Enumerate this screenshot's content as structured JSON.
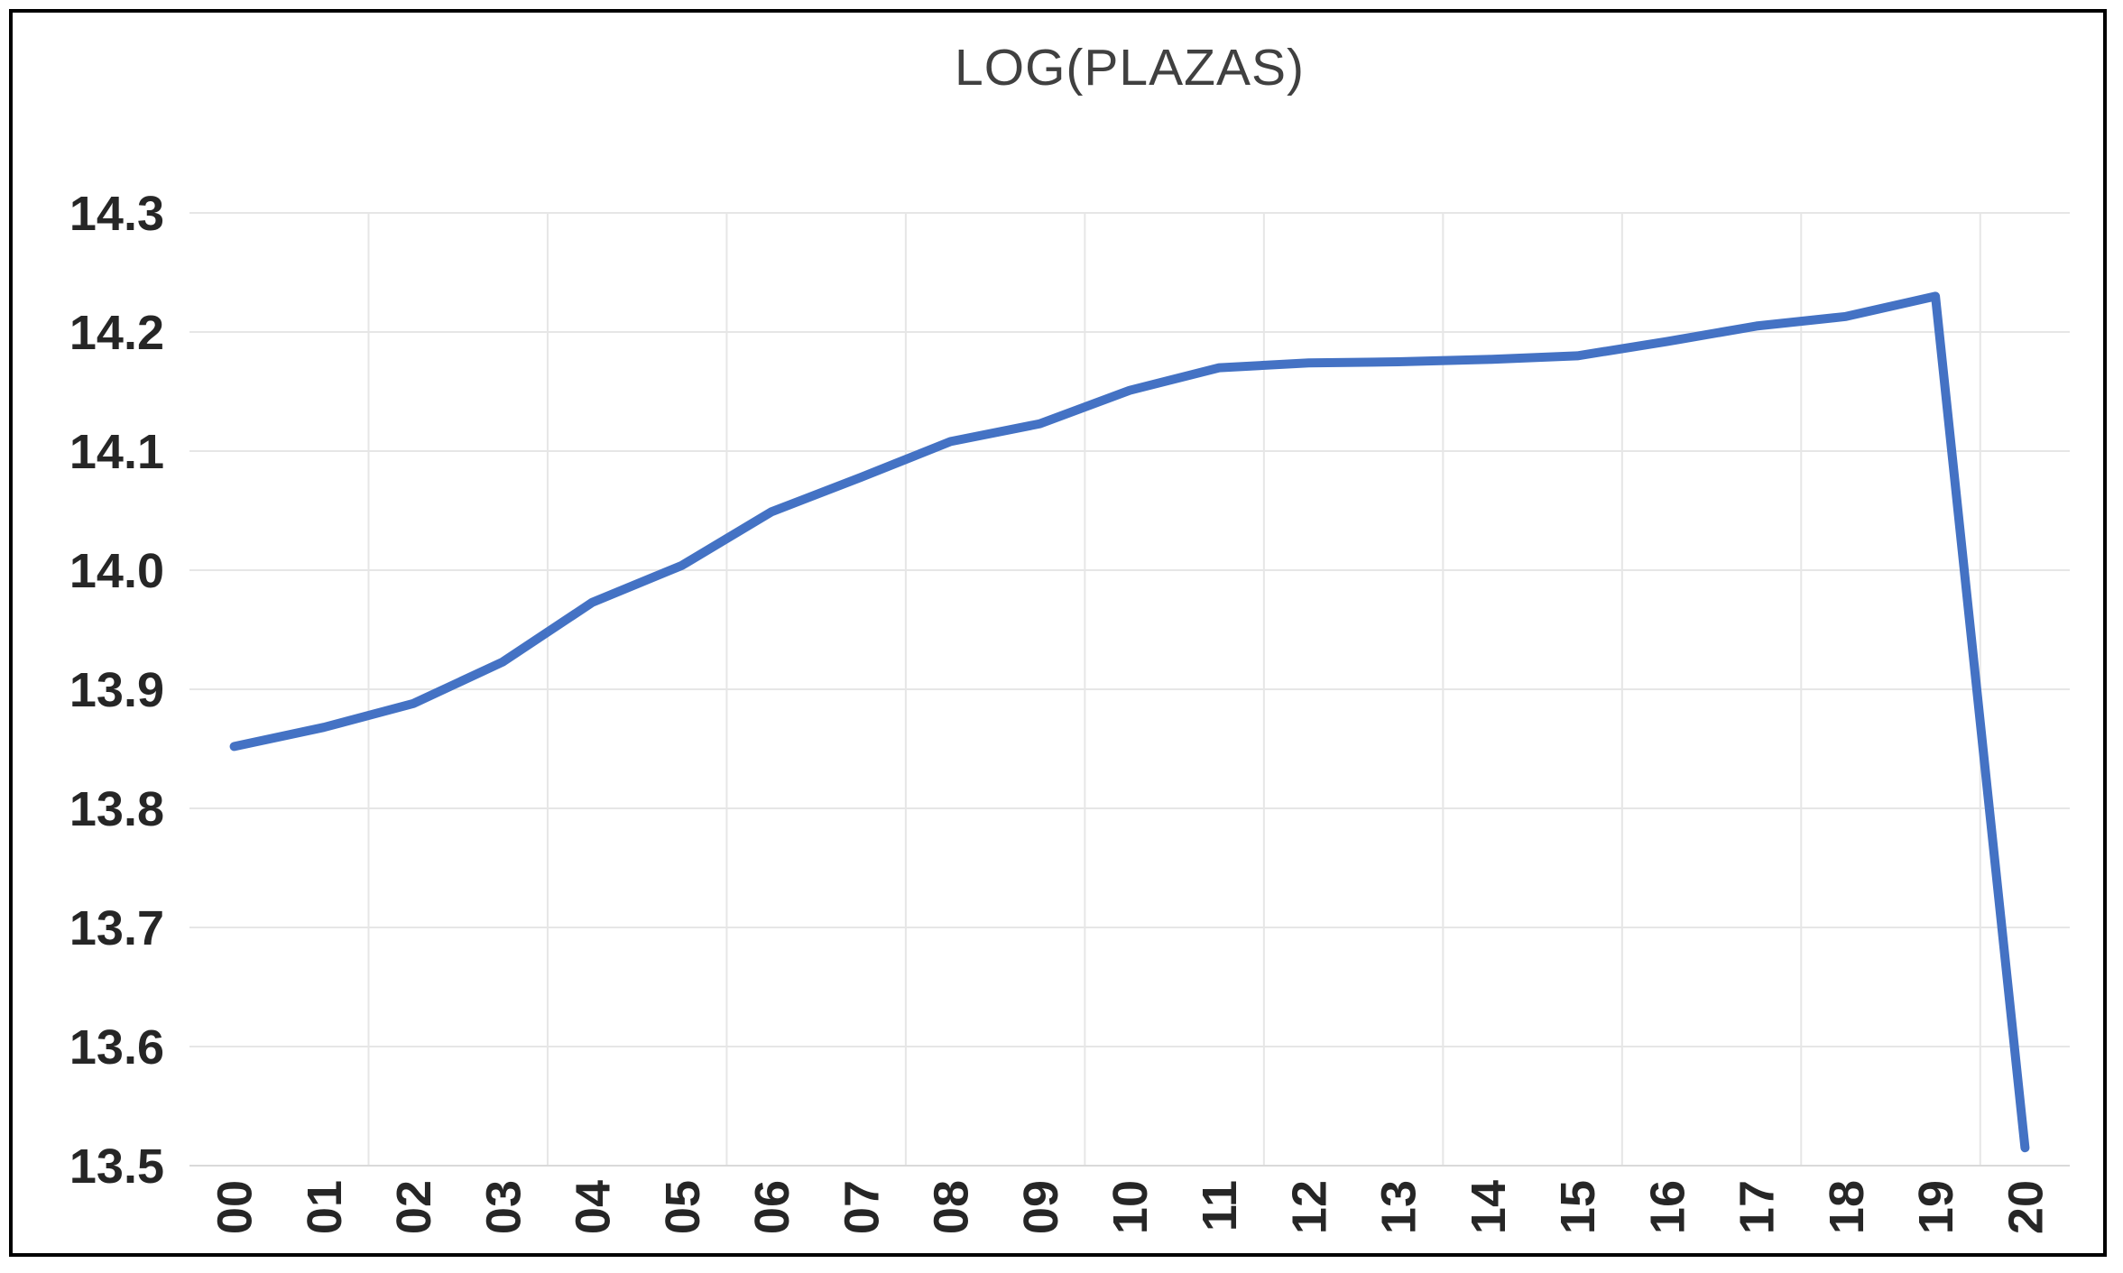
{
  "chart_data": {
    "type": "line",
    "title": "LOG(PLAZAS)",
    "categories": [
      "00",
      "01",
      "02",
      "03",
      "04",
      "05",
      "06",
      "07",
      "08",
      "09",
      "10",
      "11",
      "12",
      "13",
      "14",
      "15",
      "16",
      "17",
      "18",
      "19",
      "20"
    ],
    "series": [
      {
        "name": "LOG(PLAZAS)",
        "values": [
          13.852,
          13.868,
          13.888,
          13.923,
          13.973,
          14.004,
          14.049,
          14.078,
          14.108,
          14.123,
          14.151,
          14.17,
          14.174,
          14.175,
          14.177,
          14.18,
          14.192,
          14.205,
          14.213,
          14.23,
          13.515
        ]
      }
    ],
    "xlabel": "",
    "ylabel": "",
    "ylim": [
      13.5,
      14.3
    ],
    "ytick_step": 0.1,
    "yticks": [
      "14.3",
      "14.2",
      "14.1",
      "14.0",
      "13.9",
      "13.8",
      "13.7",
      "13.6",
      "13.5"
    ],
    "x_labels_rotation_degrees": -90,
    "grid": true,
    "legend_position": "none",
    "colors": {
      "line": "#4472C4",
      "gridline": "#E6E6E6",
      "axis_line": "#D9D9D9",
      "axis_text": "#262626",
      "title_text": "#404040",
      "frame_border": "#000000",
      "background": "#FFFFFF"
    }
  }
}
